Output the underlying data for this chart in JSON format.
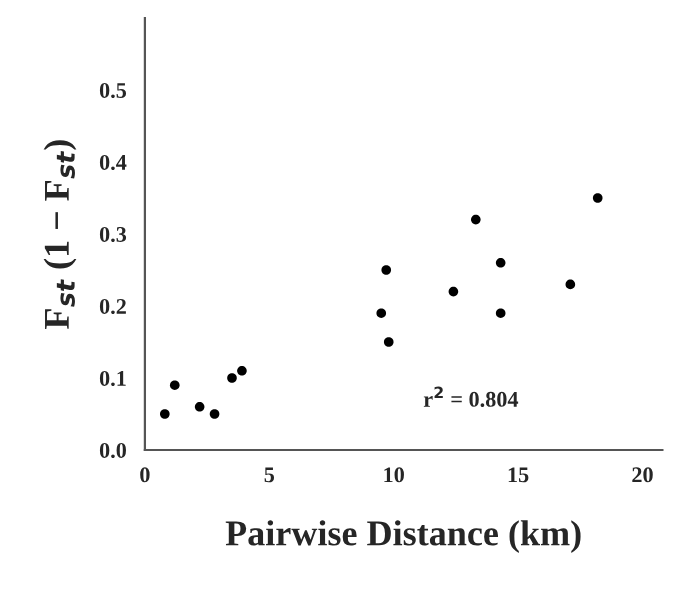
{
  "chart_data": {
    "type": "scatter",
    "xlabel": "Pairwise Distance (km)",
    "ylabel": "F$_{st}$ (1 − F$_{st}$)",
    "annotations": [
      "r$^{2}$ = 0.804"
    ],
    "x": [
      0.8,
      1.2,
      2.2,
      2.8,
      3.5,
      3.9,
      9.5,
      9.7,
      9.8,
      12.4,
      13.3,
      14.3,
      14.3,
      17.1,
      18.2
    ],
    "series": [
      {
        "color": "#000000",
        "values": [
          0.05,
          0.09,
          0.06,
          0.05,
          0.1,
          0.11,
          0.19,
          0.25,
          0.15,
          0.22,
          0.32,
          0.26,
          0.19,
          0.23,
          0.35
        ]
      }
    ],
    "marker": "circle",
    "xlim": [
      0,
      20.8
    ],
    "ylim": [
      0,
      0.6
    ],
    "xticks": [
      0,
      5,
      10,
      15,
      20
    ],
    "yticks": [
      {
        "value": 0,
        "label": "0.0"
      },
      0.1,
      0.2,
      0.3,
      0.4,
      0.5
    ],
    "grid": false,
    "legend": false
  }
}
